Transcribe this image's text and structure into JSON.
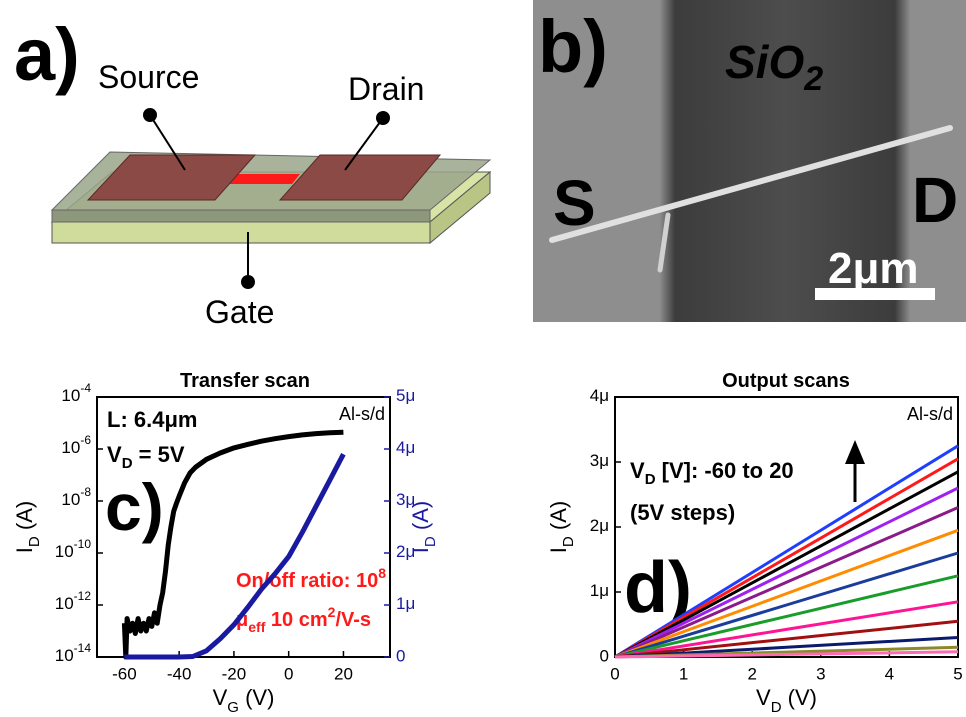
{
  "panel_a": {
    "label": "a)",
    "source": "Source",
    "drain": "Drain",
    "gate": "Gate"
  },
  "panel_b": {
    "label": "b)",
    "oxide": "SiO",
    "oxide_sub": "2",
    "source": "S",
    "drain": "D",
    "scale_bar": "2μm"
  },
  "chart_data": [
    {
      "type": "line",
      "title": "Transfer scan",
      "panel_label": "c)",
      "xlabel": "V",
      "xlabel_sub": "G",
      "xlabel_unit": " (V)",
      "ylabel": "I",
      "ylabel_sub": "D",
      "ylabel_unit": " (A)",
      "y2label": "I",
      "y2label_sub": "D",
      "y2label_unit": " (A)",
      "note_length": "L: 6.4μm",
      "note_vd": "V",
      "note_vd_sub": "D",
      "note_vd_value": " = 5V",
      "note_contacts": "Al-s/d",
      "note_ratio": "On/off ratio: 10",
      "note_ratio_sup": "8",
      "note_mobility": "μ",
      "note_mobility_sub": "eff",
      "note_mobility_value": " 10 cm",
      "note_mobility_sup": "2",
      "note_mobility_unit": "/V-s",
      "xlim": [
        -70,
        37
      ],
      "xticks": [
        -60,
        -40,
        -20,
        0,
        20
      ],
      "ylog": true,
      "ylim": [
        1e-14,
        0.0001
      ],
      "yticks": [
        {
          "value": 1e-14,
          "label": "10",
          "exponent": "-14"
        },
        {
          "value": 1e-12,
          "label": "10",
          "exponent": "-12"
        },
        {
          "value": 1e-10,
          "label": "10",
          "exponent": "-10"
        },
        {
          "value": 1e-08,
          "label": "10",
          "exponent": "-8"
        },
        {
          "value": 1e-06,
          "label": "10",
          "exponent": "-6"
        },
        {
          "value": 0.0001,
          "label": "10",
          "exponent": "-4"
        }
      ],
      "y2lim": [
        0,
        5e-06
      ],
      "y2ticks": [
        0,
        {
          "value": 1e-06,
          "label": "1μ"
        },
        {
          "value": 2e-06,
          "label": "2μ"
        },
        {
          "value": 3e-06,
          "label": "3μ"
        },
        {
          "value": 4e-06,
          "label": "4μ"
        },
        {
          "value": 5e-06,
          "label": "5μ"
        }
      ],
      "series": [
        {
          "color": "#000000",
          "axis": "y",
          "x": [
            -60,
            -59.5,
            -59,
            -58,
            -57,
            -56,
            -55,
            -54,
            -53,
            -52,
            -51,
            -50,
            -49,
            -48,
            -47,
            -46,
            -45,
            -44,
            -43,
            -42,
            -41,
            -40,
            -38,
            -36,
            -34,
            -30,
            -25,
            -20,
            -15,
            -10,
            -5,
            0,
            5,
            10,
            15,
            20
          ],
          "values": [
            2e-13,
            1e-14,
            3e-13,
            1e-13,
            2e-13,
            8e-14,
            3e-13,
            1e-13,
            2e-13,
            1e-13,
            3e-13,
            1.5e-13,
            5e-13,
            2e-13,
            1e-12,
            3e-12,
            2e-11,
            2e-10,
            1e-09,
            4e-09,
            8e-09,
            1.5e-08,
            5e-08,
            1.2e-07,
            2e-07,
            4e-07,
            7e-07,
            1.1e-06,
            1.5e-06,
            2e-06,
            2.5e-06,
            3e-06,
            3.5e-06,
            3.9e-06,
            4.2e-06,
            4.4e-06
          ]
        },
        {
          "color": "#1a1aa0",
          "axis": "y2",
          "x": [
            -60,
            -40,
            -35,
            -30,
            -25,
            -20,
            -15,
            -10,
            -5,
            0,
            5,
            10,
            15,
            20
          ],
          "values": [
            0,
            0,
            1e-08,
            1.2e-07,
            3.5e-07,
            6.2e-07,
            9.5e-07,
            1.3e-06,
            1.6e-06,
            1.93e-06,
            2.4e-06,
            2.9e-06,
            3.4e-06,
            3.9e-06
          ]
        }
      ]
    },
    {
      "type": "line",
      "title": "Output scans",
      "panel_label": "d)",
      "xlabel": "V",
      "xlabel_sub": "D",
      "xlabel_unit": " (V)",
      "ylabel": "I",
      "ylabel_sub": "D",
      "ylabel_unit": " (A)",
      "note_range": "V",
      "note_range_sub": "D",
      "note_range_value": " [V]: -60 to 20",
      "note_steps": "(5V steps)",
      "note_contacts": "Al-s/d",
      "xlim": [
        0,
        5
      ],
      "xticks": [
        0,
        1,
        2,
        3,
        4,
        5
      ],
      "ylim": [
        0,
        4e-06
      ],
      "yticks": [
        0,
        {
          "value": 1e-06,
          "label": "1μ"
        },
        {
          "value": 2e-06,
          "label": "2μ"
        },
        {
          "value": 3e-06,
          "label": "3μ"
        },
        {
          "value": 4e-06,
          "label": "4μ"
        }
      ],
      "series": [
        {
          "color": "#1f3fff",
          "x": [
            0,
            2.5,
            5
          ],
          "values": [
            0,
            1.625e-06,
            3.25e-06
          ]
        },
        {
          "color": "#ff1a1a",
          "x": [
            0,
            2.5,
            5
          ],
          "values": [
            0,
            1.525e-06,
            3.05e-06
          ]
        },
        {
          "color": "#000000",
          "x": [
            0,
            2.5,
            5
          ],
          "values": [
            0,
            1.425e-06,
            2.85e-06
          ]
        },
        {
          "color": "#a020f0",
          "x": [
            0,
            2.5,
            5
          ],
          "values": [
            0,
            1.3e-06,
            2.6e-06
          ]
        },
        {
          "color": "#8b1a8b",
          "x": [
            0,
            2.5,
            5
          ],
          "values": [
            0,
            1.15e-06,
            2.3e-06
          ]
        },
        {
          "color": "#ff8c00",
          "x": [
            0,
            2.5,
            5
          ],
          "values": [
            0,
            9.75e-07,
            1.95e-06
          ]
        },
        {
          "color": "#1a3c9c",
          "x": [
            0,
            2.5,
            5
          ],
          "values": [
            0,
            8e-07,
            1.6e-06
          ]
        },
        {
          "color": "#1a9c2a",
          "x": [
            0,
            2.5,
            5
          ],
          "values": [
            0,
            6.25e-07,
            1.25e-06
          ]
        },
        {
          "color": "#ff1493",
          "x": [
            0,
            2.5,
            5
          ],
          "values": [
            0,
            4.25e-07,
            8.5e-07
          ]
        },
        {
          "color": "#a01010",
          "x": [
            0,
            2.5,
            5
          ],
          "values": [
            0,
            2.75e-07,
            5.5e-07
          ]
        },
        {
          "color": "#0a1a6e",
          "x": [
            0,
            2.5,
            5
          ],
          "values": [
            0,
            1.5e-07,
            3e-07
          ]
        },
        {
          "color": "#8a8a2a",
          "x": [
            0,
            2.5,
            5
          ],
          "values": [
            0,
            7.5e-08,
            1.5e-07
          ]
        },
        {
          "color": "#ff69b4",
          "x": [
            0,
            2.5,
            5
          ],
          "values": [
            0,
            4e-08,
            8e-08
          ]
        }
      ]
    }
  ]
}
